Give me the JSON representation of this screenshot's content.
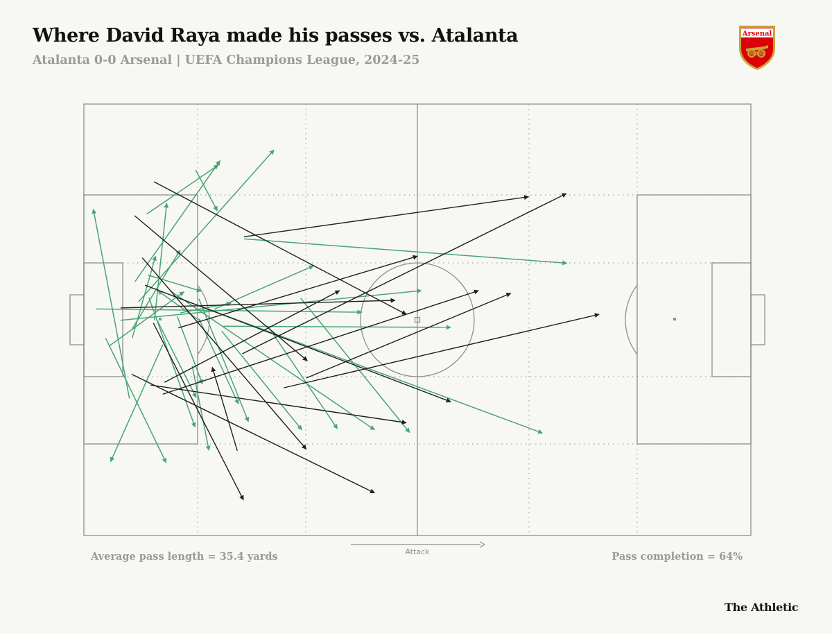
{
  "header": {
    "title": "Where David Raya made his passes vs. Atalanta",
    "subtitle": "Atalanta 0-0 Arsenal | UEFA Champions League, 2024-25"
  },
  "crest": {
    "icon": "arsenal-crest-icon",
    "text": "Arsenal",
    "colors": {
      "red": "#db0007",
      "gold": "#c9a235"
    }
  },
  "legend_note": {
    "attack_label": "Attack"
  },
  "stats": {
    "avg_pass_length": "Average pass length = 35.4 yards",
    "pass_completion": "Pass completion = 64%"
  },
  "brand": "The Athletic",
  "colors": {
    "completed": "#4aa376",
    "incomplete": "#1f1f1f",
    "pitch_line": "#8f8f8b"
  },
  "chart_data": {
    "type": "pass-map",
    "pitch": {
      "length_yards": 120,
      "width_yards": 80
    },
    "passes": [
      {
        "x1": 3.9,
        "y1": 43.4,
        "x2": 14.8,
        "y2": 66.5,
        "completed": true
      },
      {
        "x1": 8.2,
        "y1": 54.6,
        "x2": 1.7,
        "y2": 19.5,
        "completed": true
      },
      {
        "x1": 12.7,
        "y1": 40.1,
        "x2": 14.9,
        "y2": 18.4,
        "completed": true
      },
      {
        "x1": 8.7,
        "y1": 41.7,
        "x2": 17.3,
        "y2": 27.1,
        "completed": true
      },
      {
        "x1": 9.8,
        "y1": 36.7,
        "x2": 34.2,
        "y2": 8.5,
        "completed": true
      },
      {
        "x1": 9.2,
        "y1": 32.9,
        "x2": 24.5,
        "y2": 10.5,
        "completed": true
      },
      {
        "x1": 11.3,
        "y1": 20.4,
        "x2": 24.2,
        "y2": 11.3,
        "completed": true
      },
      {
        "x1": 11.5,
        "y1": 31.7,
        "x2": 21.1,
        "y2": 34.7,
        "completed": true
      },
      {
        "x1": 11.7,
        "y1": 35.9,
        "x2": 20.0,
        "y2": 59.9,
        "completed": true
      },
      {
        "x1": 13.2,
        "y1": 40.1,
        "x2": 20.2,
        "y2": 54.4,
        "completed": true
      },
      {
        "x1": 14.2,
        "y1": 44.6,
        "x2": 4.8,
        "y2": 66.3,
        "completed": true
      },
      {
        "x1": 8.7,
        "y1": 43.4,
        "x2": 12.9,
        "y2": 28.2,
        "completed": true
      },
      {
        "x1": 19.5,
        "y1": 48.6,
        "x2": 22.5,
        "y2": 64.2,
        "completed": true
      },
      {
        "x1": 21.0,
        "y1": 40.3,
        "x2": 13.3,
        "y2": 34.6,
        "completed": true
      },
      {
        "x1": 17.4,
        "y1": 38.7,
        "x2": 26.5,
        "y2": 36.9,
        "completed": true
      },
      {
        "x1": 23.5,
        "y1": 38.0,
        "x2": 41.3,
        "y2": 30.0,
        "completed": true
      },
      {
        "x1": 16.8,
        "y1": 39.4,
        "x2": 21.3,
        "y2": 51.9,
        "completed": true
      },
      {
        "x1": 20.7,
        "y1": 36.1,
        "x2": 29.6,
        "y2": 58.9,
        "completed": true
      },
      {
        "x1": 20.7,
        "y1": 39.8,
        "x2": 27.8,
        "y2": 55.6,
        "completed": true
      },
      {
        "x1": 24.8,
        "y1": 42.1,
        "x2": 39.2,
        "y2": 60.4,
        "completed": true
      },
      {
        "x1": 15.5,
        "y1": 34.6,
        "x2": 52.3,
        "y2": 60.4,
        "completed": true
      },
      {
        "x1": 33.7,
        "y1": 42.1,
        "x2": 45.6,
        "y2": 60.2,
        "completed": true
      },
      {
        "x1": 39.0,
        "y1": 36.0,
        "x2": 58.6,
        "y2": 60.9,
        "completed": true
      },
      {
        "x1": 25.1,
        "y1": 41.2,
        "x2": 66.0,
        "y2": 41.4,
        "completed": true
      },
      {
        "x1": 6.6,
        "y1": 40.1,
        "x2": 60.7,
        "y2": 34.6,
        "completed": true
      },
      {
        "x1": 28.8,
        "y1": 25.0,
        "x2": 86.9,
        "y2": 29.5,
        "completed": true
      },
      {
        "x1": 16.0,
        "y1": 35.6,
        "x2": 82.5,
        "y2": 61.0,
        "completed": true
      },
      {
        "x1": 2.2,
        "y1": 38.0,
        "x2": 50.0,
        "y2": 38.6,
        "completed": true
      },
      {
        "x1": 20.1,
        "y1": 12.2,
        "x2": 24.0,
        "y2": 19.8,
        "completed": true
      },
      {
        "x1": 4.5,
        "y1": 44.9,
        "x2": 18.0,
        "y2": 34.8,
        "completed": true
      },
      {
        "x1": 14.5,
        "y1": 51.6,
        "x2": 46.0,
        "y2": 34.6,
        "completed": false
      },
      {
        "x1": 6.6,
        "y1": 37.8,
        "x2": 56.0,
        "y2": 36.4,
        "completed": false
      },
      {
        "x1": 10.5,
        "y1": 28.5,
        "x2": 40.0,
        "y2": 64.0,
        "completed": false
      },
      {
        "x1": 12.6,
        "y1": 14.4,
        "x2": 58.0,
        "y2": 39.0,
        "completed": false
      },
      {
        "x1": 11.0,
        "y1": 33.6,
        "x2": 66.0,
        "y2": 55.2,
        "completed": false
      },
      {
        "x1": 28.8,
        "y1": 24.6,
        "x2": 80.0,
        "y2": 17.2,
        "completed": false
      },
      {
        "x1": 17.0,
        "y1": 41.5,
        "x2": 60.0,
        "y2": 28.2,
        "completed": false
      },
      {
        "x1": 28.5,
        "y1": 46.3,
        "x2": 86.8,
        "y2": 16.6,
        "completed": false
      },
      {
        "x1": 12.0,
        "y1": 52.1,
        "x2": 58.0,
        "y2": 59.1,
        "completed": false
      },
      {
        "x1": 14.2,
        "y1": 53.8,
        "x2": 71.0,
        "y2": 34.6,
        "completed": false
      },
      {
        "x1": 36.0,
        "y1": 52.6,
        "x2": 92.7,
        "y2": 39.0,
        "completed": false
      },
      {
        "x1": 40.0,
        "y1": 50.8,
        "x2": 76.8,
        "y2": 35.1,
        "completed": false
      },
      {
        "x1": 12.5,
        "y1": 40.6,
        "x2": 28.7,
        "y2": 73.4,
        "completed": false
      },
      {
        "x1": 8.6,
        "y1": 50.1,
        "x2": 52.3,
        "y2": 72.1,
        "completed": false
      },
      {
        "x1": 27.6,
        "y1": 64.3,
        "x2": 23.1,
        "y2": 48.8,
        "completed": false
      },
      {
        "x1": 9.1,
        "y1": 20.7,
        "x2": 40.2,
        "y2": 47.6,
        "completed": false
      }
    ]
  }
}
